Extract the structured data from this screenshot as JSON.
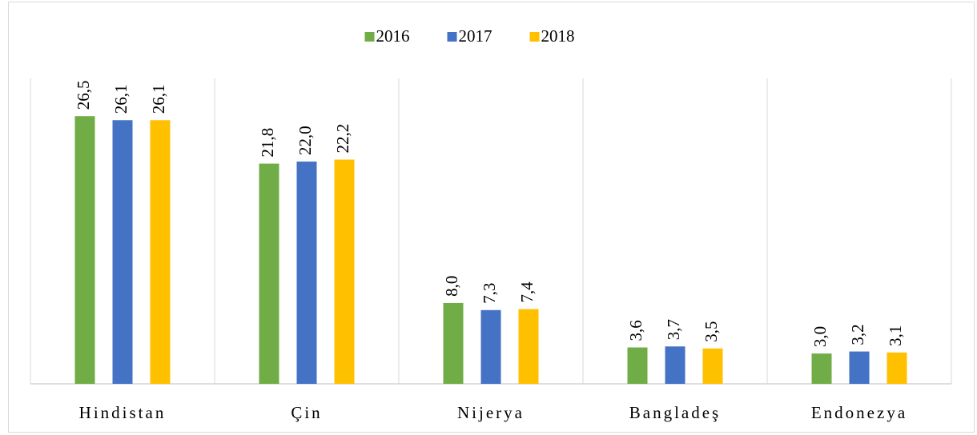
{
  "chart_data": {
    "type": "bar",
    "categories": [
      "Hindistan",
      "Çin",
      "Nijerya",
      "Bangladeş",
      "Endonezya"
    ],
    "series": [
      {
        "name": "2016",
        "color": "#70ad47",
        "values": [
          26.5,
          21.8,
          8.0,
          3.6,
          3.0
        ],
        "value_labels": [
          "26,5",
          "21,8",
          "8,0",
          "3,6",
          "3,0"
        ]
      },
      {
        "name": "2017",
        "color": "#4472c4",
        "values": [
          26.1,
          22.0,
          7.3,
          3.7,
          3.2
        ],
        "value_labels": [
          "26,1",
          "22,0",
          "7,3",
          "3,7",
          "3,2"
        ]
      },
      {
        "name": "2018",
        "color": "#ffc000",
        "values": [
          26.1,
          22.2,
          7.4,
          3.5,
          3.1
        ],
        "value_labels": [
          "26,1",
          "22,2",
          "7,4",
          "3,5",
          "3,1"
        ]
      }
    ],
    "ylim": [
      0,
      30
    ],
    "legend": "top"
  }
}
